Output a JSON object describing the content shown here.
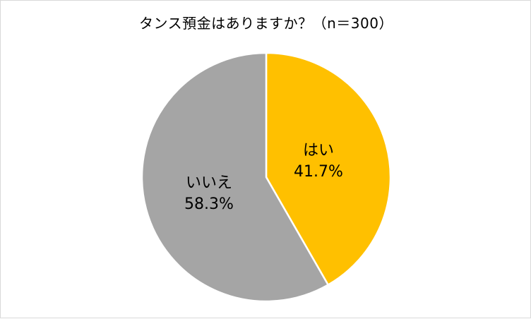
{
  "chart_data": {
    "type": "pie",
    "title": "タンス預金はありますか？（n＝300）",
    "categories": [
      "はい",
      "いいえ"
    ],
    "values": [
      41.7,
      58.3
    ],
    "value_labels": [
      "41.7%",
      "58.3%"
    ],
    "colors": [
      "#FFC000",
      "#A5A5A5"
    ],
    "start_angle": "12 o'clock",
    "direction": "clockwise",
    "legend": "none",
    "slice_border_color": "#FFFFFF"
  }
}
